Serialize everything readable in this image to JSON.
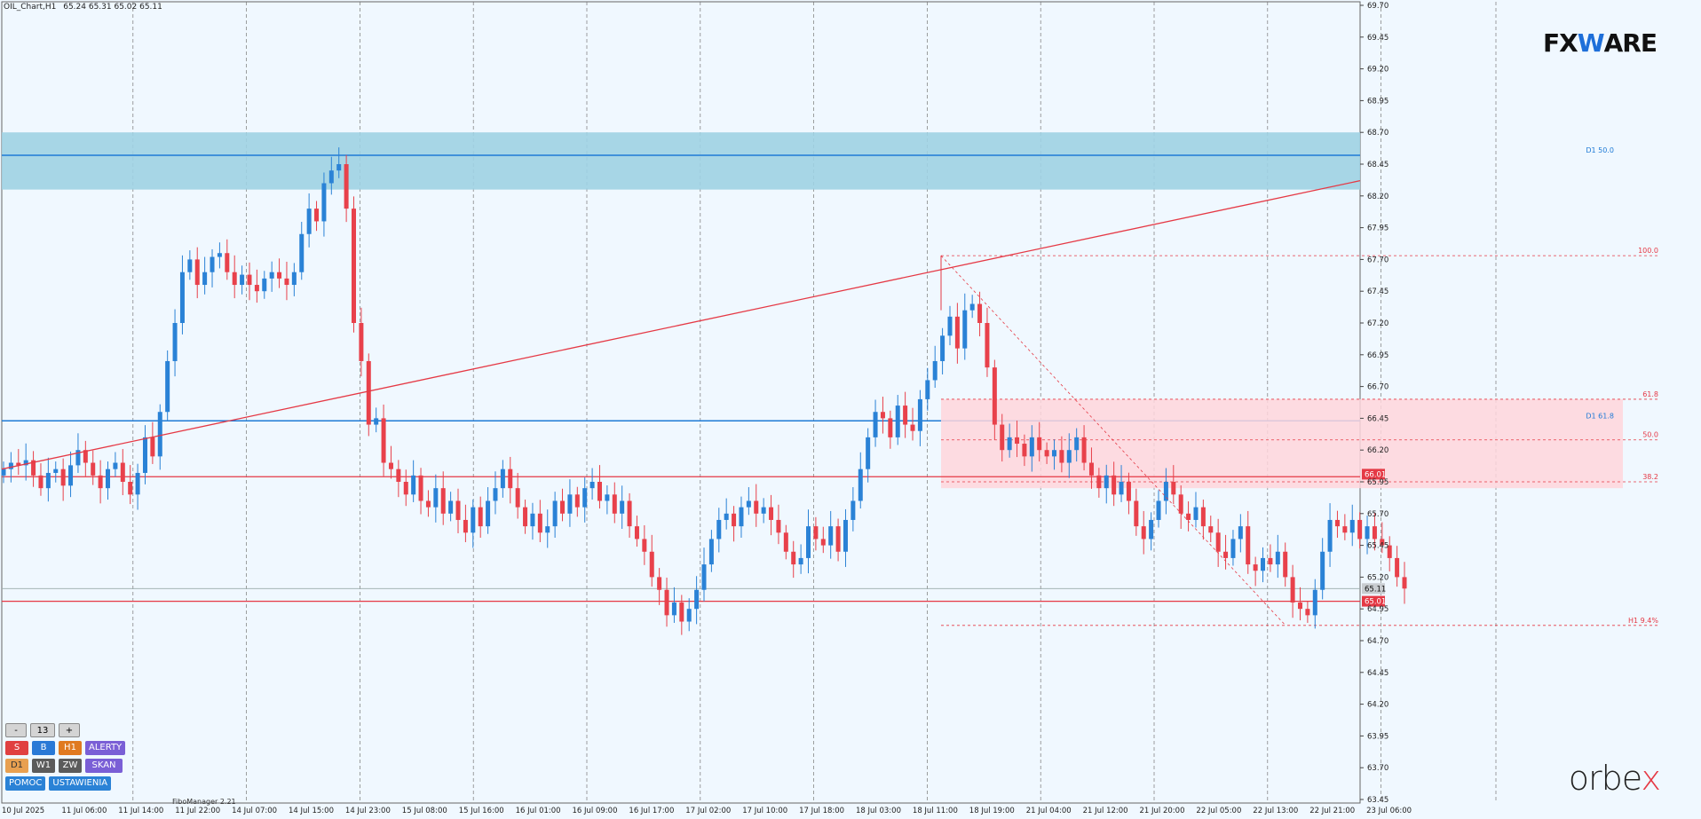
{
  "header": {
    "symbol": "OIL_Chart,H1",
    "ohlc": "65.24 65.31 65.02 65.11"
  },
  "logos": {
    "fx_pre": "FX",
    "fx_mid": "W",
    "fx_post": "ARE",
    "orbex_pre": "orbe",
    "orbex_x": "x"
  },
  "footer": {
    "fibo_manager": "FiboManager 2.21"
  },
  "panel": {
    "minus": "-",
    "tf_num": "13",
    "plus": "+",
    "s": "S",
    "b": "B",
    "h1": "H1",
    "alerty": "ALERTY",
    "d1": "D1",
    "w1": "W1",
    "zw": "ZW",
    "skan": "SKAN",
    "pomoc": "POMOC",
    "ustawienia": "USTAWIENIA"
  },
  "colors": {
    "bull": "#2a82d6",
    "bear": "#e8414b",
    "zone_blue": "#9fd2e3",
    "zone_pink": "#ffd6dc",
    "line_red": "#e53945",
    "line_blue": "#1e7ad6",
    "bg": "#f0f8ff"
  },
  "chart_data": {
    "type": "candlestick",
    "ylim": [
      63.45,
      69.7
    ],
    "y_ticks": [
      "69.70",
      "69.45",
      "69.20",
      "68.95",
      "68.70",
      "68.45",
      "68.20",
      "67.95",
      "67.70",
      "67.45",
      "67.20",
      "66.95",
      "66.70",
      "66.45",
      "66.20",
      "65.95",
      "65.70",
      "65.45",
      "65.20",
      "64.95",
      "64.70",
      "64.45",
      "64.20",
      "63.95",
      "63.70",
      "63.45"
    ],
    "x_ticks": [
      "10 Jul 2025",
      "11 Jul 06:00",
      "11 Jul 14:00",
      "11 Jul 22:00",
      "14 Jul 07:00",
      "14 Jul 15:00",
      "14 Jul 23:00",
      "15 Jul 08:00",
      "15 Jul 16:00",
      "16 Jul 01:00",
      "16 Jul 09:00",
      "16 Jul 17:00",
      "17 Jul 02:00",
      "17 Jul 10:00",
      "17 Jul 18:00",
      "18 Jul 03:00",
      "18 Jul 11:00",
      "18 Jul 19:00",
      "21 Jul 04:00",
      "21 Jul 12:00",
      "21 Jul 20:00",
      "22 Jul 05:00",
      "22 Jul 13:00",
      "22 Jul 21:00",
      "23 Jul 06:00"
    ],
    "closes": [
      66.05,
      66.1,
      66.08,
      66.12,
      66.0,
      65.9,
      66.02,
      66.05,
      65.92,
      66.08,
      66.2,
      66.1,
      66.0,
      65.9,
      66.05,
      66.1,
      65.95,
      65.85,
      66.02,
      66.3,
      66.15,
      66.5,
      66.9,
      67.2,
      67.6,
      67.7,
      67.5,
      67.6,
      67.72,
      67.75,
      67.6,
      67.5,
      67.58,
      67.5,
      67.45,
      67.55,
      67.6,
      67.55,
      67.5,
      67.6,
      67.9,
      68.1,
      68.0,
      68.3,
      68.4,
      68.45,
      68.1,
      67.2,
      66.9,
      66.4,
      66.45,
      66.1,
      66.05,
      65.95,
      65.85,
      66.0,
      65.8,
      65.75,
      65.9,
      65.7,
      65.8,
      65.65,
      65.55,
      65.75,
      65.6,
      65.8,
      65.9,
      66.05,
      65.9,
      65.75,
      65.6,
      65.7,
      65.55,
      65.6,
      65.8,
      65.7,
      65.85,
      65.75,
      65.9,
      65.95,
      65.8,
      65.85,
      65.7,
      65.8,
      65.6,
      65.5,
      65.4,
      65.2,
      65.1,
      64.9,
      65.0,
      64.85,
      64.95,
      65.1,
      65.3,
      65.5,
      65.65,
      65.7,
      65.6,
      65.75,
      65.8,
      65.7,
      65.75,
      65.65,
      65.55,
      65.4,
      65.3,
      65.35,
      65.6,
      65.5,
      65.45,
      65.6,
      65.4,
      65.65,
      65.8,
      66.05,
      66.3,
      66.5,
      66.45,
      66.3,
      66.55,
      66.4,
      66.35,
      66.6,
      66.75,
      66.9,
      67.1,
      67.25,
      67.0,
      67.3,
      67.35,
      67.2,
      66.85,
      66.4,
      66.2,
      66.3,
      66.25,
      66.15,
      66.3,
      66.2,
      66.15,
      66.2,
      66.1,
      66.2,
      66.3,
      66.1,
      66.0,
      65.9,
      66.0,
      65.85,
      65.95,
      65.8,
      65.6,
      65.5,
      65.65,
      65.8,
      65.95,
      65.85,
      65.7,
      65.65,
      65.75,
      65.6,
      65.55,
      65.4,
      65.35,
      65.5,
      65.6,
      65.3,
      65.25,
      65.35,
      65.3,
      65.4,
      65.2,
      65.0,
      64.95,
      64.9,
      65.1,
      65.4,
      65.65,
      65.6,
      65.55,
      65.65,
      65.5,
      65.6,
      65.5,
      65.45,
      65.35,
      65.2,
      65.11
    ]
  },
  "levels": {
    "d1_50": "D1 50.0",
    "d1_618": "D1 61.8",
    "fib_100": "100.0",
    "fib_618": "61.8",
    "fib_50": "50.0",
    "fib_382": "38.2",
    "h1_94": "H1 9.4%",
    "price_66_01": "66.01",
    "price_65_11": "65.11",
    "price_65_01": "65.01",
    "blue_zone": [
      68.25,
      68.7
    ],
    "blue_line": 68.52,
    "blue_line2": 66.43,
    "red_h1": 65.99,
    "red_h2": 65.01,
    "grey_h": 65.11,
    "fib_levels": [
      67.73,
      66.6,
      66.28,
      65.95,
      64.82
    ],
    "pink_zone": [
      65.9,
      66.6
    ]
  }
}
